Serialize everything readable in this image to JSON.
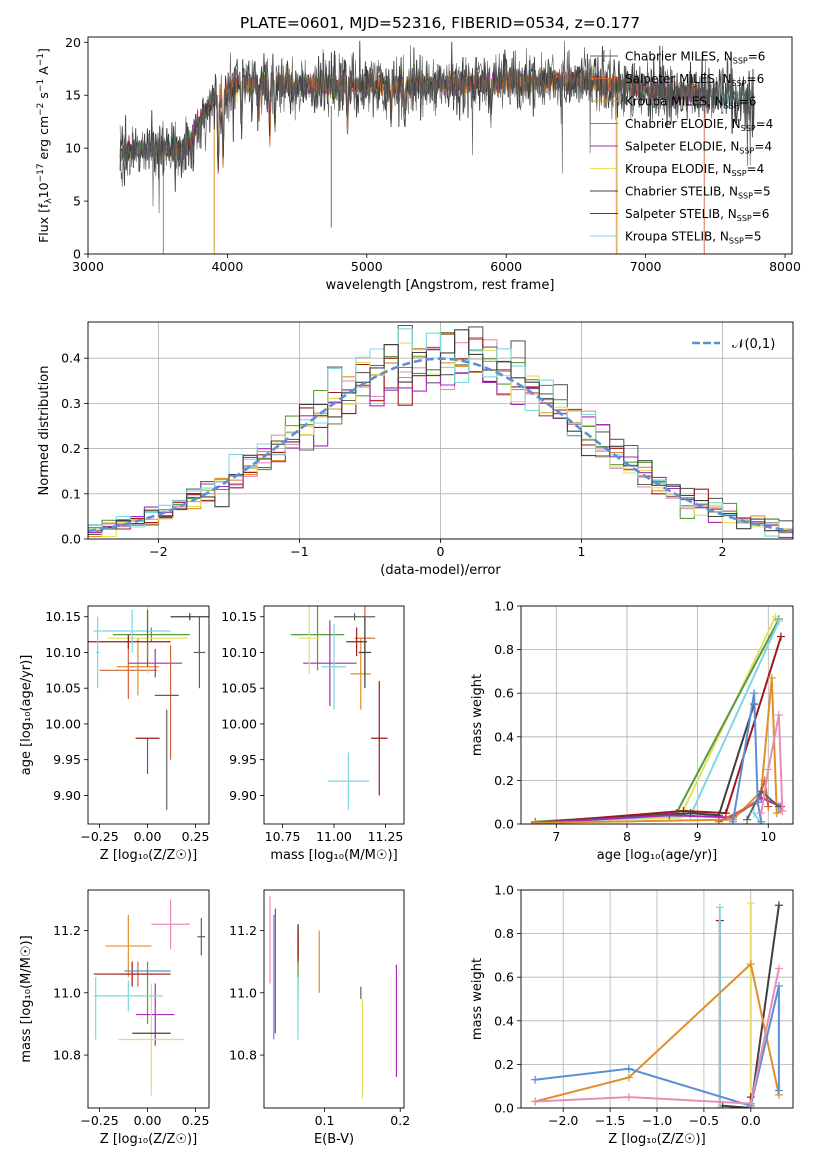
{
  "figure": {
    "title": "PLATE=0601, MJD=52316, FIBERID=0534, z=0.177"
  },
  "series": [
    {
      "key": "chab_miles",
      "label_main": "Chabrier MILES, N",
      "sub": "SSP",
      "label_eq": "=6",
      "color": "#606060"
    },
    {
      "key": "salp_miles",
      "label_main": "Salpeter MILES, N",
      "sub": "SSP",
      "label_eq": "=6",
      "color": "#d0643c"
    },
    {
      "key": "krou_miles",
      "label_main": "Kroupa MILES, N",
      "sub": "SSP",
      "label_eq": "=6",
      "color": "#e0902a"
    },
    {
      "key": "chab_elodie",
      "label_main": "Chabrier ELODIE, N",
      "sub": "SSP",
      "label_eq": "=4",
      "color": "#5a9a44"
    },
    {
      "key": "salp_elodie",
      "label_main": "Salpeter ELODIE, N",
      "sub": "SSP",
      "label_eq": "=4",
      "color": "#a62cb8"
    },
    {
      "key": "krou_elodie",
      "label_main": "Kroupa ELODIE, N",
      "sub": "SSP",
      "label_eq": "=4",
      "color": "#e6e05a"
    },
    {
      "key": "chab_stelib",
      "label_main": "Chabrier STELIB, N",
      "sub": "SSP",
      "label_eq": "=5",
      "color": "#404040"
    },
    {
      "key": "salp_stelib",
      "label_main": "Salpeter STELIB, N",
      "sub": "SSP",
      "label_eq": "=6",
      "color": "#a01818"
    },
    {
      "key": "krou_stelib",
      "label_main": "Kroupa STELIB, N",
      "sub": "SSP",
      "label_eq": "=5",
      "color": "#7fd8e0"
    }
  ],
  "chart_data": [
    {
      "id": "spectrum",
      "type": "line",
      "xlabel": "wavelength [Angstrom, rest frame]",
      "ylabel_parts": [
        "Flux [f",
        "λ",
        "10",
        "−17",
        " erg cm",
        "−2",
        " s",
        "−1",
        " A",
        "−1",
        "]"
      ],
      "xlim": [
        3000,
        8050
      ],
      "ylim": [
        0,
        20.5
      ],
      "xticks": [
        3000,
        4000,
        5000,
        6000,
        7000,
        8000
      ],
      "yticks": [
        0,
        5,
        10,
        15,
        20
      ],
      "grid": false,
      "legend": "upper right",
      "wavelength_range": [
        3230,
        7780
      ],
      "continuum_anchors": [
        [
          3230,
          9.6
        ],
        [
          3700,
          10.0
        ],
        [
          3900,
          14.5
        ],
        [
          4100,
          16.2
        ],
        [
          4500,
          16.0
        ],
        [
          5000,
          15.9
        ],
        [
          5500,
          16.0
        ],
        [
          6000,
          16.3
        ],
        [
          6500,
          16.4
        ],
        [
          7000,
          15.6
        ],
        [
          7500,
          14.9
        ],
        [
          7780,
          14.6
        ]
      ],
      "absorption_lines": [
        [
          3934,
          7
        ],
        [
          3969,
          6
        ],
        [
          4102,
          4
        ],
        [
          4227,
          3
        ],
        [
          4304,
          5
        ],
        [
          4341,
          4
        ],
        [
          4861,
          4
        ],
        [
          5175,
          3
        ],
        [
          5270,
          2
        ],
        [
          5890,
          3
        ]
      ],
      "edges": [
        {
          "series": "salp_miles",
          "x": 3540,
          "side": "start"
        },
        {
          "series": "krou_miles",
          "x": 3905,
          "side": "start"
        },
        {
          "series": "krou_elodie",
          "x": 3905,
          "side": "start"
        },
        {
          "series": "krou_miles",
          "x": 6790,
          "side": "end"
        },
        {
          "series": "krou_elodie",
          "x": 6800,
          "side": "end"
        },
        {
          "series": "salp_miles",
          "x": 7420,
          "side": "end"
        }
      ]
    },
    {
      "id": "residuals",
      "type": "step",
      "xlabel": "(data-model)/error",
      "ylabel": "Normed distribution",
      "xlim": [
        -2.5,
        2.5
      ],
      "ylim": [
        0,
        0.48
      ],
      "xticks": [
        -2,
        -1,
        0,
        1,
        2
      ],
      "yticks": [
        0.0,
        0.1,
        0.2,
        0.3,
        0.4
      ],
      "grid": true,
      "bin_width": 0.1,
      "legend": "upper right",
      "reference_label": "𝒩(0,1)",
      "reference_color": "#5b8fd6"
    },
    {
      "id": "age_vs_Z",
      "type": "errorbar",
      "xlabel": "Z [log₁₀(Z/Z☉)]",
      "ylabel": "age  [log₁₀(age/yr)]",
      "xlim": [
        -0.31,
        0.32
      ],
      "ylim": [
        9.86,
        10.165
      ],
      "xticks": [
        -0.25,
        0.0,
        0.25
      ],
      "yticks": [
        9.9,
        9.95,
        10.0,
        10.05,
        10.1,
        10.15
      ],
      "grid": false,
      "points": [
        {
          "series": "chab_miles",
          "x": 0.27,
          "y": 10.1,
          "xerr": 0.03,
          "yerr": 0.05
        },
        {
          "series": "salp_miles",
          "x": -0.1,
          "y": 10.075,
          "xerr": 0.15,
          "yerr": 0.04
        },
        {
          "series": "krou_miles",
          "x": -0.05,
          "y": 10.08,
          "xerr": 0.11,
          "yerr": 0.04
        },
        {
          "series": "chab_elodie",
          "x": 0.02,
          "y": 10.125,
          "xerr": 0.2,
          "yerr": 0.01
        },
        {
          "series": "salp_elodie",
          "x": 0.04,
          "y": 10.085,
          "xerr": 0.14,
          "yerr": 0.02
        },
        {
          "series": "krou_elodie",
          "x": 0.0,
          "y": 10.12,
          "xerr": 0.21,
          "yerr": 0.05
        },
        {
          "series": "chab_stelib",
          "x": 0.22,
          "y": 10.15,
          "xerr": 0.1,
          "yerr": 0.005
        },
        {
          "series": "salp_stelib",
          "x": -0.1,
          "y": 10.115,
          "xerr": 0.22,
          "yerr": 0.01
        },
        {
          "series": "krou_stelib",
          "x": -0.08,
          "y": 10.13,
          "xerr": 0.2,
          "yerr": 0.03
        },
        {
          "series": "krou_stelib",
          "x": -0.26,
          "y": 10.1,
          "xerr": 0.01,
          "yerr": 0.05
        },
        {
          "series": "chab_miles",
          "x": 0.0,
          "y": 10.12,
          "xerr": 0.0,
          "yerr": 0.04
        },
        {
          "series": "salp_elodie",
          "x": 0.0,
          "y": 9.955,
          "xerr": 0.0,
          "yerr": 0.025
        },
        {
          "series": "salp_miles",
          "x": 0.0,
          "y": 10.1,
          "xerr": 0.0,
          "yerr": 0.01
        },
        {
          "series": "chab_miles",
          "x": 0.1,
          "y": 9.95,
          "xerr": 0.0,
          "yerr": 0.07
        },
        {
          "series": "salp_miles",
          "x": 0.12,
          "y": 10.03,
          "xerr": 0.0,
          "yerr": 0.08
        }
      ],
      "hbars": [
        {
          "series": "chab_miles",
          "x": 0.1,
          "y": 10.04,
          "xerr": 0.0,
          "yerr": 0.0
        },
        {
          "series": "salp_stelib",
          "x": 0.0,
          "y": 9.98,
          "xerr": 0.0,
          "yerr": 0.0
        }
      ]
    },
    {
      "id": "age_vs_mass",
      "type": "errorbar",
      "xlabel": "mass [log₁₀(M/M☉)]",
      "ylabel": "",
      "xlim": [
        10.66,
        11.34
      ],
      "ylim": [
        9.86,
        10.165
      ],
      "xticks": [
        10.75,
        11.0,
        11.25
      ],
      "yticks": [
        9.9,
        9.95,
        10.0,
        10.05,
        10.1,
        10.15
      ],
      "grid": false,
      "points": [
        {
          "series": "chab_miles",
          "x": 11.1,
          "y": 10.15,
          "xerr": 0.1,
          "yerr": 0.005
        },
        {
          "series": "salp_miles",
          "x": 11.15,
          "y": 10.12,
          "xerr": 0.05,
          "yerr": 0.05
        },
        {
          "series": "krou_miles",
          "x": 11.13,
          "y": 10.07,
          "xerr": 0.05,
          "yerr": 0.05
        },
        {
          "series": "chab_elodie",
          "x": 10.92,
          "y": 10.125,
          "xerr": 0.13,
          "yerr": 0.05
        },
        {
          "series": "salp_elodie",
          "x": 10.98,
          "y": 10.085,
          "xerr": 0.13,
          "yerr": 0.06
        },
        {
          "series": "krou_elodie",
          "x": 10.88,
          "y": 10.12,
          "xerr": 0.05,
          "yerr": 0.05
        },
        {
          "series": "chab_stelib",
          "x": 11.15,
          "y": 10.1,
          "xerr": 0.03,
          "yerr": 0.05
        },
        {
          "series": "salp_stelib",
          "x": 11.11,
          "y": 10.115,
          "xerr": 0.05,
          "yerr": 0.02
        },
        {
          "series": "krou_stelib",
          "x": 11.0,
          "y": 10.08,
          "xerr": 0.06,
          "yerr": 0.06
        }
      ],
      "vbars": [
        {
          "series": "krou_stelib",
          "x": 11.07,
          "y": 9.92,
          "xerr": 0.1,
          "yerr": 0.04
        },
        {
          "series": "salp_stelib",
          "x": 11.22,
          "y": 9.98,
          "xerr": 0.04,
          "yerr": 0.08
        }
      ]
    },
    {
      "id": "mass_weight_vs_age",
      "type": "line",
      "xlabel": "age  [log₁₀(age/yr)]",
      "ylabel": "mass weight",
      "xlim": [
        6.5,
        10.35
      ],
      "ylim": [
        0,
        1.0
      ],
      "xticks": [
        7,
        8,
        9,
        10
      ],
      "yticks": [
        0.0,
        0.2,
        0.4,
        0.6,
        0.8,
        1.0
      ],
      "grid": true,
      "lines": [
        {
          "series": "krou_elodie",
          "x": [
            6.7,
            8.75,
            10.1
          ],
          "y": [
            0.01,
            0.03,
            0.95
          ]
        },
        {
          "series": "chab_elodie",
          "x": [
            6.7,
            8.7,
            10.15
          ],
          "y": [
            0.01,
            0.05,
            0.94
          ]
        },
        {
          "series": "krou_stelib",
          "x": [
            6.7,
            8.9,
            10.15
          ],
          "y": [
            0.005,
            0.04,
            0.93
          ]
        },
        {
          "series": "salp_stelib",
          "x": [
            6.7,
            8.8,
            9.4,
            10.18
          ],
          "y": [
            0.005,
            0.06,
            0.05,
            0.86
          ]
        },
        {
          "series": "chab_stelib",
          "x": [
            6.7,
            8.9,
            9.3,
            9.8
          ],
          "y": [
            0.005,
            0.05,
            0.04,
            0.55
          ]
        },
        {
          "series": "salp_elodie",
          "x": [
            6.7,
            8.6,
            9.5,
            9.9,
            10.18
          ],
          "y": [
            0.005,
            0.04,
            0.03,
            0.12,
            0.08
          ]
        },
        {
          "series": "krou_miles",
          "x": [
            6.7,
            9.5,
            9.9,
            10.05,
            10.12,
            10.2
          ],
          "y": [
            0.005,
            0.02,
            0.15,
            0.67,
            0.05,
            0.06
          ]
        },
        {
          "series": "salp_miles",
          "x": [
            9.3,
            9.85,
            9.95,
            10.0
          ],
          "y": [
            0.01,
            0.1,
            0.2,
            0.08
          ]
        },
        {
          "series": "chab_miles",
          "x": [
            9.7,
            9.9,
            10.15
          ],
          "y": [
            0.02,
            0.15,
            0.08
          ]
        },
        {
          "series": "krou_stelib",
          "x": [
            9.8,
            9.9
          ],
          "y": [
            0.05,
            0.0
          ]
        }
      ],
      "extra_lines": [
        {
          "color": "#5b8fd6",
          "x": [
            9.5,
            9.8,
            9.85,
            9.9
          ],
          "y": [
            0.01,
            0.6,
            0.1,
            0.01
          ]
        },
        {
          "color": "#e58fb8",
          "x": [
            9.9,
            10.0,
            10.15,
            10.2
          ],
          "y": [
            0.05,
            0.25,
            0.5,
            0.06
          ]
        }
      ]
    },
    {
      "id": "mass_vs_Z",
      "type": "errorbar",
      "xlabel": "Z [log₁₀(Z/Z☉)]",
      "ylabel": "mass [log₁₀(M/M☉)]",
      "xlim": [
        -0.31,
        0.32
      ],
      "ylim": [
        10.63,
        11.33
      ],
      "xticks": [
        -0.25,
        0.0,
        0.25
      ],
      "yticks": [
        10.8,
        11.0,
        11.2
      ],
      "grid": false,
      "points": [
        {
          "series": "chab_miles",
          "x": 0.28,
          "y": 11.18,
          "xerr": 0.02,
          "yerr": 0.06
        },
        {
          "series": "salp_miles",
          "x": -0.05,
          "y": 11.06,
          "xerr": 0.1,
          "yerr": 0.04
        },
        {
          "series": "krou_miles",
          "x": -0.1,
          "y": 11.15,
          "xerr": 0.12,
          "yerr": 0.1
        },
        {
          "series": "chab_elodie",
          "x": 0.0,
          "y": 11.0,
          "xerr": 0.0,
          "yerr": 0.1
        },
        {
          "series": "salp_elodie",
          "x": 0.04,
          "y": 10.93,
          "xerr": 0.1,
          "yerr": 0.1
        },
        {
          "series": "krou_elodie",
          "x": 0.02,
          "y": 10.85,
          "xerr": 0.17,
          "yerr": 0.18
        },
        {
          "series": "chab_stelib",
          "x": 0.02,
          "y": 10.87,
          "xerr": 0.1,
          "yerr": 0.0
        },
        {
          "series": "salp_stelib",
          "x": -0.08,
          "y": 11.06,
          "xerr": 0.2,
          "yerr": 0.04
        },
        {
          "series": "krou_stelib",
          "x": -0.1,
          "y": 10.99,
          "xerr": 0.18,
          "yerr": 0.05
        },
        {
          "series": "krou_stelib",
          "x": -0.27,
          "y": 10.95,
          "xerr": 0.0,
          "yerr": 0.1
        }
      ],
      "hbars": [
        {
          "color": "#e58fb8",
          "x": 0.12,
          "y": 11.22,
          "xerr": 0.1,
          "yerr": 0.08
        },
        {
          "color": "#5b8fd6",
          "x": 0.0,
          "y": 11.07,
          "xerr": 0.12,
          "yerr": 0.0
        }
      ]
    },
    {
      "id": "mass_vs_ebv",
      "type": "errorbar",
      "xlabel": "E(B-V)",
      "ylabel": "",
      "xlim": [
        0.02,
        0.205
      ],
      "ylim": [
        10.63,
        11.33
      ],
      "xticks": [
        0.1,
        0.2
      ],
      "yticks": [
        10.8,
        11.0,
        11.2
      ],
      "grid": false,
      "points": [
        {
          "series": "chab_miles",
          "x": 0.148,
          "y": 11.0,
          "xerr": 0.0,
          "yerr": 0.02
        },
        {
          "series": "salp_miles",
          "x": 0.065,
          "y": 11.15,
          "xerr": 0.0,
          "yerr": 0.06
        },
        {
          "series": "krou_miles",
          "x": 0.093,
          "y": 11.1,
          "xerr": 0.0,
          "yerr": 0.1
        },
        {
          "series": "chab_elodie",
          "x": 0.065,
          "y": 11.1,
          "xerr": 0.0,
          "yerr": 0.12
        },
        {
          "series": "salp_elodie",
          "x": 0.195,
          "y": 10.91,
          "xerr": 0.0,
          "yerr": 0.18
        },
        {
          "series": "krou_elodie",
          "x": 0.15,
          "y": 10.82,
          "xerr": 0.0,
          "yerr": 0.16
        },
        {
          "series": "chab_stelib",
          "x": 0.065,
          "y": 11.17,
          "xerr": 0.0,
          "yerr": 0.05
        },
        {
          "series": "salp_stelib",
          "x": 0.065,
          "y": 11.15,
          "xerr": 0.0,
          "yerr": 0.05
        },
        {
          "series": "krou_stelib",
          "x": 0.065,
          "y": 10.95,
          "xerr": 0.0,
          "yerr": 0.1
        },
        {
          "series": "salp_elodie",
          "x": 0.035,
          "y": 11.07,
          "xerr": 0.0,
          "yerr": 0.2
        }
      ],
      "extra_points": [
        {
          "color": "#5b8fd6",
          "x": 0.033,
          "y": 11.05,
          "xerr": 0.0,
          "yerr": 0.2
        },
        {
          "color": "#e58fb8",
          "x": 0.028,
          "y": 11.17,
          "xerr": 0.0,
          "yerr": 0.14
        }
      ]
    },
    {
      "id": "mass_weight_vs_Z",
      "type": "line",
      "xlabel": "Z [log₁₀(Z/Z☉)]",
      "ylabel": "mass weight",
      "xlim": [
        -2.45,
        0.45
      ],
      "ylim": [
        0,
        1.0
      ],
      "xticks": [
        -2.0,
        -1.5,
        -1.0,
        -0.5,
        0.0
      ],
      "yticks": [
        0.0,
        0.2,
        0.4,
        0.6,
        0.8,
        1.0
      ],
      "grid": true,
      "lines": [
        {
          "series": "chab_stelib",
          "x": [
            -0.3,
            0.0,
            0.3
          ],
          "y": [
            0.01,
            0.0,
            0.93
          ]
        },
        {
          "series": "salp_stelib",
          "x": [
            -0.33,
            -0.33
          ],
          "y": [
            0.0,
            0.86
          ]
        },
        {
          "series": "krou_stelib",
          "x": [
            -0.33,
            -0.33
          ],
          "y": [
            0.0,
            0.92
          ]
        },
        {
          "series": "krou_elodie",
          "x": [
            0.0,
            0.0
          ],
          "y": [
            0.0,
            0.94
          ]
        },
        {
          "series": "krou_miles",
          "x": [
            -2.3,
            -1.3,
            0.0,
            0.3
          ],
          "y": [
            0.03,
            0.14,
            0.66,
            0.06
          ]
        },
        {
          "series": "salp_stelib",
          "x": [
            0.0,
            0.0
          ],
          "y": [
            0.05,
            0.02
          ]
        }
      ],
      "extra_lines": [
        {
          "color": "#5b8fd6",
          "x": [
            -2.3,
            -1.3,
            0.0,
            0.3,
            0.3
          ],
          "y": [
            0.13,
            0.18,
            0.01,
            0.56,
            0.08
          ]
        },
        {
          "color": "#e58fb8",
          "x": [
            -2.3,
            -1.3,
            0.0,
            0.3
          ],
          "y": [
            0.03,
            0.05,
            0.02,
            0.64
          ]
        }
      ]
    }
  ]
}
